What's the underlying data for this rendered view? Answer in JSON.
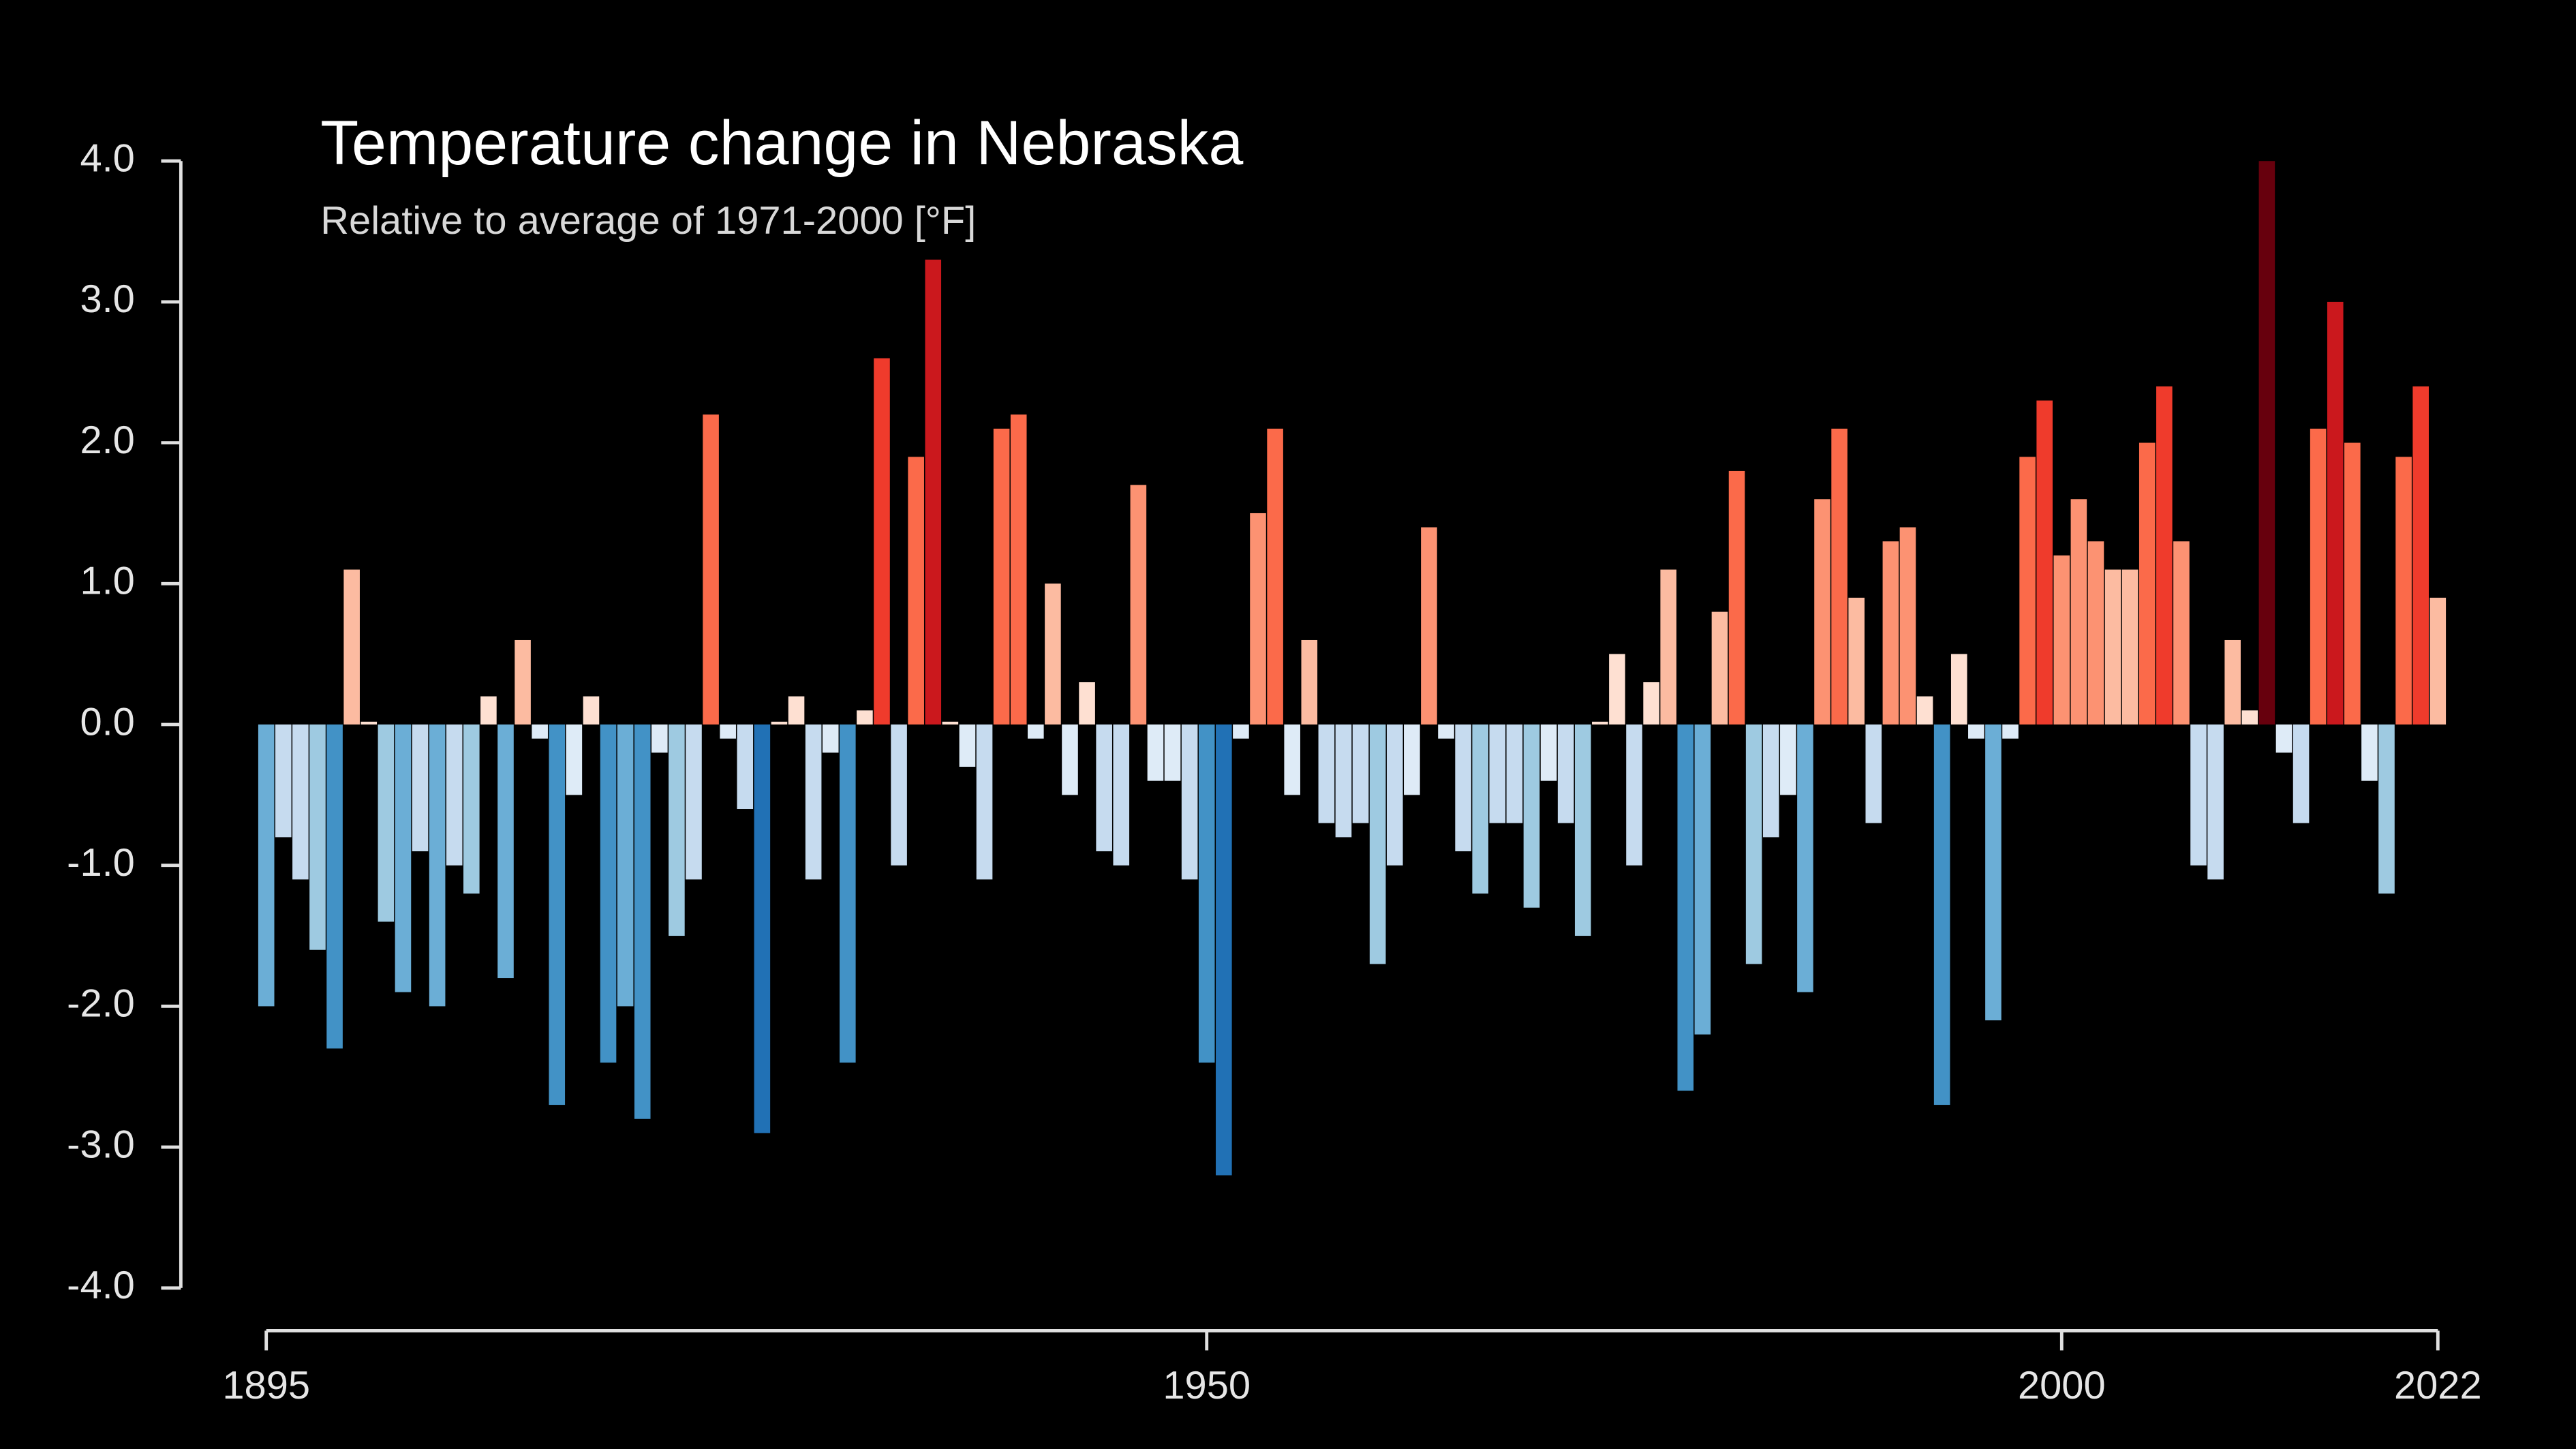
{
  "chart_data": {
    "type": "bar",
    "title": "Temperature change in Nebraska",
    "subtitle": "Relative to average of 1971-2000  [°F]",
    "x": [
      1895,
      1896,
      1897,
      1898,
      1899,
      1900,
      1901,
      1902,
      1903,
      1904,
      1905,
      1906,
      1907,
      1908,
      1909,
      1910,
      1911,
      1912,
      1913,
      1914,
      1915,
      1916,
      1917,
      1918,
      1919,
      1920,
      1921,
      1922,
      1923,
      1924,
      1925,
      1926,
      1927,
      1928,
      1929,
      1930,
      1931,
      1932,
      1933,
      1934,
      1935,
      1936,
      1937,
      1938,
      1939,
      1940,
      1941,
      1942,
      1943,
      1944,
      1945,
      1946,
      1947,
      1948,
      1949,
      1950,
      1951,
      1952,
      1953,
      1954,
      1955,
      1956,
      1957,
      1958,
      1959,
      1960,
      1961,
      1962,
      1963,
      1964,
      1965,
      1966,
      1967,
      1968,
      1969,
      1970,
      1971,
      1972,
      1973,
      1974,
      1975,
      1976,
      1977,
      1978,
      1979,
      1980,
      1981,
      1982,
      1983,
      1984,
      1985,
      1986,
      1987,
      1988,
      1989,
      1990,
      1991,
      1992,
      1993,
      1994,
      1995,
      1996,
      1997,
      1998,
      1999,
      2000,
      2001,
      2002,
      2003,
      2004,
      2005,
      2006,
      2007,
      2008,
      2009,
      2010,
      2011,
      2012,
      2013,
      2014,
      2015,
      2016,
      2017,
      2018,
      2019,
      2020,
      2021,
      2022
    ],
    "values": [
      -2.0,
      -0.8,
      -1.1,
      -1.6,
      -2.3,
      1.1,
      0.02,
      -1.4,
      -1.9,
      -0.9,
      -2.0,
      -1.0,
      -1.2,
      0.2,
      -1.8,
      0.6,
      -0.1,
      -2.7,
      -0.5,
      0.2,
      -2.4,
      -2.0,
      -2.8,
      -0.2,
      -1.5,
      -1.1,
      2.2,
      -0.1,
      -0.6,
      -2.9,
      0.02,
      0.2,
      -1.1,
      -0.2,
      -2.4,
      0.1,
      2.6,
      -1.0,
      1.9,
      3.3,
      0.02,
      -0.3,
      -1.1,
      2.1,
      2.2,
      -0.1,
      1.0,
      -0.5,
      0.3,
      -0.9,
      -1.0,
      1.7,
      -0.4,
      -0.4,
      -1.1,
      -2.4,
      -3.2,
      -0.1,
      1.5,
      2.1,
      -0.5,
      0.6,
      -0.7,
      -0.8,
      -0.7,
      -1.7,
      -1.0,
      -0.5,
      1.4,
      -0.1,
      -0.9,
      -1.2,
      -0.7,
      -0.7,
      -1.3,
      -0.4,
      -0.7,
      -1.5,
      0.02,
      0.5,
      -1.0,
      0.3,
      1.1,
      -2.6,
      -2.2,
      0.8,
      1.8,
      -1.7,
      -0.8,
      -0.5,
      -1.9,
      1.6,
      2.1,
      0.9,
      -0.7,
      1.3,
      1.4,
      0.2,
      -2.7,
      0.5,
      -0.1,
      -2.1,
      -0.1,
      1.9,
      2.3,
      1.2,
      1.6,
      1.3,
      1.1,
      1.1,
      2.0,
      2.4,
      1.3,
      -1.0,
      -1.1,
      0.6,
      0.1,
      4.0,
      -0.2,
      -0.7,
      2.1,
      3.0,
      2.0,
      -0.4,
      -1.2,
      1.9,
      2.4,
      0.9
    ],
    "palette": [
      "#08519c",
      "#2171b5",
      "#4292c6",
      "#6baed6",
      "#9ecae1",
      "#c6dbef",
      "#deebf7",
      "#fee0d2",
      "#fcbba1",
      "#fc9272",
      "#fb6a4a",
      "#ef3b2c",
      "#cb181d",
      "#67000d"
    ],
    "xlim": [
      1895,
      2022
    ],
    "xticks": [
      1895,
      1950,
      2000,
      2022
    ],
    "ylim": [
      -4,
      4
    ],
    "yticks": [
      {
        "value": -4,
        "label": "-4.0"
      },
      {
        "value": -3,
        "label": "-3.0"
      },
      {
        "value": -2,
        "label": "-2.0"
      },
      {
        "value": -1,
        "label": "-1.0"
      },
      {
        "value": 0,
        "label": "0.0"
      },
      {
        "value": 1,
        "label": "1.0"
      },
      {
        "value": 2,
        "label": "2.0"
      },
      {
        "value": 3,
        "label": "3.0"
      },
      {
        "value": 4,
        "label": "4.0"
      }
    ]
  }
}
